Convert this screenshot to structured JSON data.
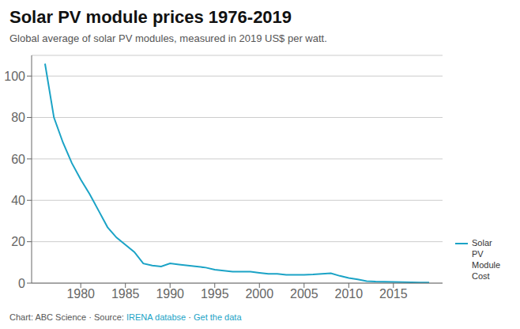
{
  "chart_data": {
    "type": "line",
    "title": "Solar PV module prices 1976-2019",
    "subtitle": "Global average of solar PV modules, measured in 2019 US$ per watt.",
    "footer": [
      {
        "text": "Chart: ABC Science · Source: ",
        "color": "#555555"
      },
      {
        "text": "IRENA databse",
        "color": "#1ba3c6"
      },
      {
        "text": " · ",
        "color": "#555555"
      },
      {
        "text": "Get the data",
        "color": "#1ba3c6"
      }
    ],
    "x": [
      1976,
      1977,
      1978,
      1979,
      1980,
      1981,
      1982,
      1983,
      1984,
      1985,
      1986,
      1987,
      1988,
      1989,
      1990,
      1991,
      1992,
      1993,
      1994,
      1995,
      1996,
      1997,
      1998,
      1999,
      2000,
      2001,
      2002,
      2003,
      2004,
      2005,
      2006,
      2007,
      2008,
      2009,
      2010,
      2011,
      2012,
      2013,
      2014,
      2015,
      2016,
      2017,
      2018,
      2019
    ],
    "series": [
      {
        "name": "Solar\nPV\nModule\nCost",
        "color": "#1ba3c6",
        "values": [
          106.0,
          80.0,
          68.0,
          58.0,
          50.0,
          43.0,
          35.0,
          27.0,
          22.0,
          18.5,
          15.0,
          9.5,
          8.5,
          8.0,
          9.5,
          9.0,
          8.5,
          8.0,
          7.5,
          6.5,
          6.0,
          5.5,
          5.5,
          5.5,
          5.0,
          4.5,
          4.5,
          4.0,
          4.0,
          4.0,
          4.2,
          4.5,
          4.8,
          3.5,
          2.5,
          1.8,
          1.0,
          0.8,
          0.7,
          0.6,
          0.5,
          0.4,
          0.3,
          0.25
        ]
      }
    ],
    "xlim": [
      1974.5,
      2020.5
    ],
    "ylim": [
      0,
      110
    ],
    "xticks": [
      1980,
      1985,
      1990,
      1995,
      2000,
      2005,
      2010,
      2015
    ],
    "yticks": [
      0,
      20,
      40,
      60,
      80,
      100
    ],
    "grid": true,
    "legend": "right"
  }
}
